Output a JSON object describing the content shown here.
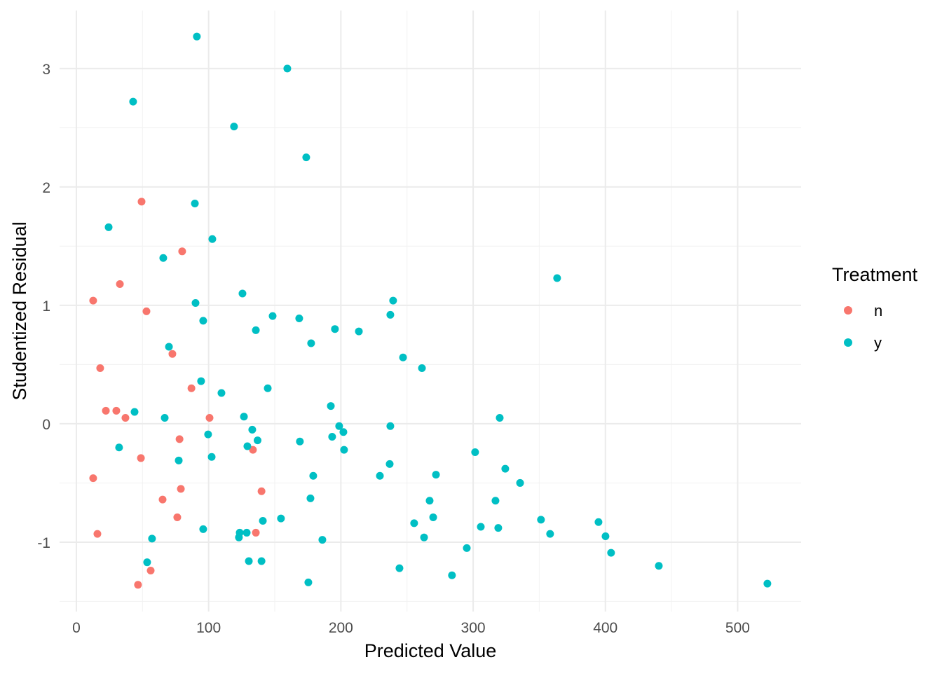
{
  "chart_data": {
    "type": "scatter",
    "title": "",
    "xlabel": "Predicted Value",
    "ylabel": "Studentized Residual",
    "xlim": [
      -12.7,
      548
    ],
    "ylim": [
      -1.586,
      3.49
    ],
    "xticks": [
      0,
      100,
      200,
      300,
      400,
      500
    ],
    "yticks": [
      -1,
      0,
      1,
      2,
      3
    ],
    "xticklabels": [
      "0",
      "100",
      "200",
      "300",
      "400",
      "500"
    ],
    "yticklabels": [
      "-1",
      "0",
      "1",
      "2",
      "3"
    ],
    "grid": true,
    "legend": {
      "title": "Treatment",
      "placement": "right"
    },
    "series": [
      {
        "name": "n",
        "color": "#F8766D",
        "points": [
          [
            49.3,
            1.876
          ],
          [
            80,
            1.456
          ],
          [
            32.9,
            1.18
          ],
          [
            12.7,
            1.04
          ],
          [
            53,
            0.95
          ],
          [
            18,
            0.47
          ],
          [
            72.6,
            0.59
          ],
          [
            87,
            0.3
          ],
          [
            22.3,
            0.11
          ],
          [
            30.2,
            0.11
          ],
          [
            37.1,
            0.05
          ],
          [
            100.7,
            0.05
          ],
          [
            78,
            -0.13
          ],
          [
            133.5,
            -0.22
          ],
          [
            48.8,
            -0.29
          ],
          [
            12.7,
            -0.46
          ],
          [
            79,
            -0.55
          ],
          [
            140,
            -0.57
          ],
          [
            65.2,
            -0.64
          ],
          [
            76.3,
            -0.79
          ],
          [
            15.9,
            -0.93
          ],
          [
            135.7,
            -0.92
          ],
          [
            56.2,
            -1.24
          ],
          [
            46.6,
            -1.36
          ]
        ]
      },
      {
        "name": "y",
        "color": "#00BFC4",
        "points": [
          [
            91.1,
            3.27
          ],
          [
            159.5,
            3.0
          ],
          [
            42.9,
            2.72
          ],
          [
            119.2,
            2.51
          ],
          [
            173.8,
            2.25
          ],
          [
            89.6,
            1.86
          ],
          [
            24.4,
            1.66
          ],
          [
            102.8,
            1.56
          ],
          [
            65.7,
            1.4
          ],
          [
            363.5,
            1.23
          ],
          [
            125.6,
            1.1
          ],
          [
            90.1,
            1.02
          ],
          [
            239.5,
            1.04
          ],
          [
            237.4,
            0.92
          ],
          [
            148.4,
            0.91
          ],
          [
            95.9,
            0.87
          ],
          [
            168.5,
            0.89
          ],
          [
            135.7,
            0.79
          ],
          [
            195.5,
            0.8
          ],
          [
            213.6,
            0.78
          ],
          [
            177.5,
            0.68
          ],
          [
            70,
            0.65
          ],
          [
            247,
            0.56
          ],
          [
            261.3,
            0.47
          ],
          [
            94.3,
            0.36
          ],
          [
            144.7,
            0.3
          ],
          [
            109.7,
            0.26
          ],
          [
            192.4,
            0.15
          ],
          [
            44,
            0.1
          ],
          [
            66.8,
            0.05
          ],
          [
            126.7,
            0.06
          ],
          [
            320.1,
            0.05
          ],
          [
            198.7,
            -0.02
          ],
          [
            237.4,
            -0.02
          ],
          [
            133,
            -0.05
          ],
          [
            201.9,
            -0.07
          ],
          [
            99.6,
            -0.09
          ],
          [
            193.4,
            -0.11
          ],
          [
            137,
            -0.14
          ],
          [
            169,
            -0.15
          ],
          [
            32.3,
            -0.2
          ],
          [
            129.3,
            -0.19
          ],
          [
            202.4,
            -0.22
          ],
          [
            301.5,
            -0.24
          ],
          [
            102.3,
            -0.28
          ],
          [
            77.4,
            -0.31
          ],
          [
            236.9,
            -0.34
          ],
          [
            324.3,
            -0.38
          ],
          [
            271.9,
            -0.43
          ],
          [
            179.1,
            -0.44
          ],
          [
            229.5,
            -0.44
          ],
          [
            335.5,
            -0.5
          ],
          [
            177,
            -0.63
          ],
          [
            267.1,
            -0.65
          ],
          [
            316.9,
            -0.65
          ],
          [
            269.8,
            -0.79
          ],
          [
            154.7,
            -0.8
          ],
          [
            141,
            -0.82
          ],
          [
            351.3,
            -0.81
          ],
          [
            255.4,
            -0.84
          ],
          [
            394.8,
            -0.83
          ],
          [
            95.9,
            -0.89
          ],
          [
            305.8,
            -0.87
          ],
          [
            319,
            -0.88
          ],
          [
            123.5,
            -0.92
          ],
          [
            128.8,
            -0.92
          ],
          [
            122.9,
            -0.96
          ],
          [
            358.2,
            -0.93
          ],
          [
            400.1,
            -0.95
          ],
          [
            57.2,
            -0.97
          ],
          [
            262.9,
            -0.96
          ],
          [
            186,
            -0.98
          ],
          [
            295.2,
            -1.05
          ],
          [
            404.3,
            -1.09
          ],
          [
            53.5,
            -1.17
          ],
          [
            130.4,
            -1.16
          ],
          [
            140,
            -1.16
          ],
          [
            440.4,
            -1.2
          ],
          [
            244.3,
            -1.22
          ],
          [
            284,
            -1.28
          ],
          [
            175.4,
            -1.34
          ],
          [
            522.5,
            -1.35
          ]
        ]
      }
    ]
  }
}
